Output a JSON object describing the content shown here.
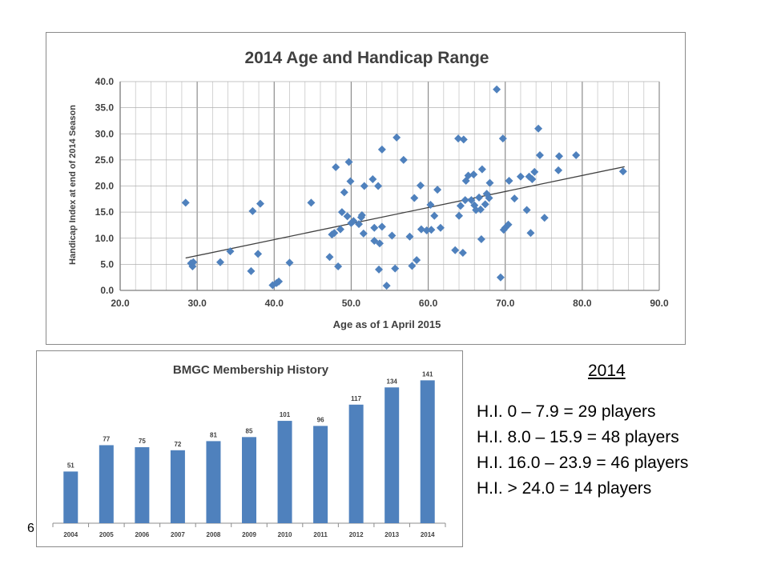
{
  "slide_number": "6",
  "summary": {
    "year": "2014",
    "lines": [
      "H.I. 0 – 7.9 = 29 players",
      "H.I. 8.0 – 15.9 = 48 players",
      "H.I. 16.0 – 23.9 = 46 players",
      "H.I. > 24.0 = 14 players"
    ]
  },
  "chart_data": [
    {
      "type": "scatter",
      "title": "2014 Age and Handicap Range",
      "xlabel": "Age as of 1 April 2015",
      "ylabel": "Handicap Index at end of 2014 Season",
      "xlim": [
        20,
        90
      ],
      "ylim": [
        0,
        40
      ],
      "xticks": [
        "20.0",
        "30.0",
        "40.0",
        "50.0",
        "60.0",
        "70.0",
        "80.0",
        "90.0"
      ],
      "yticks": [
        "0.0",
        "5.0",
        "10.0",
        "15.0",
        "20.0",
        "25.0",
        "30.0",
        "35.0",
        "40.0"
      ],
      "grid": true,
      "marker_color": "#4F81BD",
      "trendline": {
        "type": "linear",
        "from": [
          28.5,
          6.2
        ],
        "to": [
          85.5,
          23.7
        ],
        "color": "#404040"
      },
      "points": [
        [
          28.5,
          16.8
        ],
        [
          29.2,
          5.2
        ],
        [
          29.4,
          4.6
        ],
        [
          29.5,
          5.4
        ],
        [
          33.0,
          5.4
        ],
        [
          34.3,
          7.5
        ],
        [
          37.0,
          3.7
        ],
        [
          37.2,
          15.2
        ],
        [
          37.9,
          7.0
        ],
        [
          38.2,
          16.6
        ],
        [
          39.8,
          1.0
        ],
        [
          40.3,
          1.4
        ],
        [
          40.6,
          1.7
        ],
        [
          42.0,
          5.3
        ],
        [
          44.8,
          16.8
        ],
        [
          47.2,
          6.4
        ],
        [
          47.5,
          10.7
        ],
        [
          47.8,
          11.0
        ],
        [
          48.0,
          23.6
        ],
        [
          48.3,
          4.6
        ],
        [
          48.6,
          11.7
        ],
        [
          48.8,
          15.0
        ],
        [
          49.1,
          18.8
        ],
        [
          49.5,
          14.2
        ],
        [
          49.7,
          24.6
        ],
        [
          49.9,
          20.9
        ],
        [
          50.0,
          12.9
        ],
        [
          50.3,
          13.3
        ],
        [
          51.0,
          12.7
        ],
        [
          51.3,
          14.0
        ],
        [
          51.4,
          14.4
        ],
        [
          51.6,
          10.9
        ],
        [
          51.7,
          20.0
        ],
        [
          52.8,
          21.3
        ],
        [
          53.0,
          12.0
        ],
        [
          53.0,
          9.5
        ],
        [
          53.5,
          20.0
        ],
        [
          53.6,
          4.0
        ],
        [
          53.7,
          9.0
        ],
        [
          54.0,
          12.2
        ],
        [
          54.0,
          27.0
        ],
        [
          54.6,
          0.9
        ],
        [
          55.3,
          10.5
        ],
        [
          55.7,
          4.2
        ],
        [
          55.9,
          29.3
        ],
        [
          56.8,
          25.0
        ],
        [
          57.6,
          10.3
        ],
        [
          57.9,
          4.7
        ],
        [
          58.2,
          17.7
        ],
        [
          58.5,
          5.8
        ],
        [
          59.0,
          20.1
        ],
        [
          59.1,
          11.7
        ],
        [
          59.8,
          11.5
        ],
        [
          60.3,
          16.4
        ],
        [
          60.4,
          11.6
        ],
        [
          60.8,
          14.3
        ],
        [
          61.2,
          19.3
        ],
        [
          61.6,
          12.0
        ],
        [
          63.5,
          7.7
        ],
        [
          63.9,
          29.1
        ],
        [
          64.0,
          14.3
        ],
        [
          64.2,
          16.2
        ],
        [
          64.5,
          7.2
        ],
        [
          64.6,
          28.9
        ],
        [
          64.8,
          17.3
        ],
        [
          64.9,
          21.0
        ],
        [
          65.2,
          22.0
        ],
        [
          65.6,
          17.3
        ],
        [
          65.9,
          22.2
        ],
        [
          66.0,
          16.3
        ],
        [
          66.2,
          15.4
        ],
        [
          66.6,
          17.8
        ],
        [
          66.8,
          15.5
        ],
        [
          66.9,
          9.8
        ],
        [
          67.0,
          23.2
        ],
        [
          67.4,
          16.5
        ],
        [
          67.6,
          18.5
        ],
        [
          67.9,
          17.7
        ],
        [
          68.0,
          20.6
        ],
        [
          68.9,
          38.5
        ],
        [
          69.4,
          2.5
        ],
        [
          69.7,
          29.1
        ],
        [
          69.8,
          11.6
        ],
        [
          70.0,
          12.0
        ],
        [
          70.4,
          12.6
        ],
        [
          70.5,
          21.0
        ],
        [
          71.2,
          17.6
        ],
        [
          72.0,
          21.8
        ],
        [
          72.8,
          15.4
        ],
        [
          73.1,
          21.8
        ],
        [
          73.3,
          11.0
        ],
        [
          73.5,
          21.3
        ],
        [
          73.8,
          22.7
        ],
        [
          74.3,
          31.0
        ],
        [
          74.5,
          25.9
        ],
        [
          75.1,
          13.9
        ],
        [
          76.9,
          23.0
        ],
        [
          77.0,
          25.7
        ],
        [
          79.2,
          25.9
        ],
        [
          85.3,
          22.8
        ]
      ]
    },
    {
      "type": "bar",
      "title": "BMGC Membership History",
      "categories": [
        "2004",
        "2005",
        "2006",
        "2007",
        "2008",
        "2009",
        "2010",
        "2011",
        "2012",
        "2013",
        "2014"
      ],
      "values": [
        51,
        77,
        75,
        72,
        81,
        85,
        101,
        96,
        117,
        134,
        141
      ],
      "ylim": [
        0,
        150
      ],
      "bar_color": "#4F81BD",
      "grid": false
    }
  ]
}
